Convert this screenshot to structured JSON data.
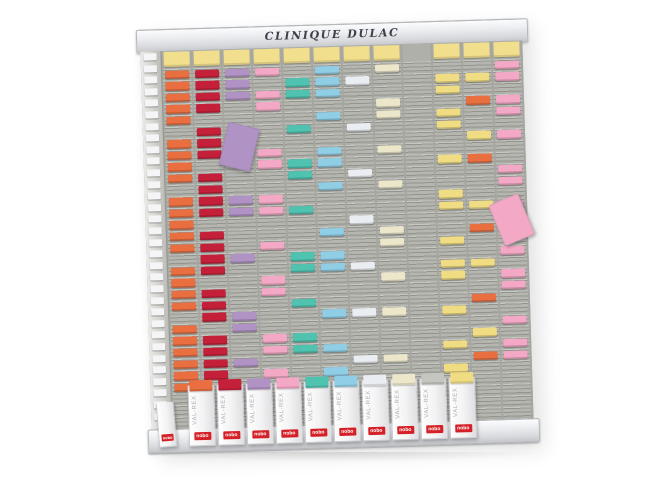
{
  "board": {
    "title": "CLINIQUE DULAC",
    "rows": 31,
    "row_height": 11.6,
    "header_color": "#f2df8e",
    "palette": {
      "orange": "#e96f41",
      "red": "#c52039",
      "purple": "#b192c5",
      "pink": "#f3a8c6",
      "teal": "#4fc2b0",
      "blue": "#90cee6",
      "white": "#eaedf1",
      "cream": "#ece7cb",
      "yellow": "#f0dd83",
      "gray": "#c6c6c1"
    },
    "mask_key": {
      "o": "orange",
      "r": "red",
      "p": "purple",
      "k": "pink",
      "t": "teal",
      "b": "blue",
      "w": "white",
      "c": "cream",
      "y": "yellow"
    },
    "columns": [
      {
        "id": 1,
        "header": true,
        "mask": "ooooo.oooo.ooooo.oooo.oooooo..."
      },
      {
        "id": 2,
        "header": true,
        "mask": "rrrr.rrr.rrrr.rrrr.rrr.rrrr...."
      },
      {
        "id": 3,
        "header": true,
        "mask": "ppp....p...pp...p....pp..p....."
      },
      {
        "id": 4,
        "header": true,
        "mask": "k.kk...kk..kk..k..kk...kk.k...."
      },
      {
        "id": 5,
        "header": true,
        "mask": ".tt..t..tt..t...tt..t..tt......"
      },
      {
        "id": 6,
        "header": true,
        "mask": "bbb.b..bb.b...b.bb...b..b.b...."
      },
      {
        "id": 7,
        "header": true,
        "mask": ".w...w...w...w...w...w...w....."
      },
      {
        "id": 8,
        "header": true,
        "mask": "c..cc..c..c...cc..c..c...c....."
      },
      {
        "id": 9,
        "header": false,
        "mask": "..............................."
      },
      {
        "id": 10,
        "header": true,
        "mask": ".yy.yy..y..yy..y.yy..y..y.y...."
      },
      {
        "id": 11,
        "header": true,
        "mask": ".y.o..y.o...y.o..y..o..y.o....."
      },
      {
        "id": 12,
        "header": true,
        "mask": "kk.kk.k..kk.k...k.kk..k.kk....."
      }
    ],
    "loose_cards": [
      {
        "color": "purple",
        "col": 3,
        "row": 5
      },
      {
        "color": "pink",
        "col": 12,
        "row": 12
      }
    ]
  },
  "boxes": {
    "label": "VAL-REX",
    "brand": "nobo",
    "items": [
      {
        "shape": "flat",
        "color": "white"
      },
      {
        "shape": "standing",
        "color": "orange"
      },
      {
        "shape": "standing",
        "color": "red"
      },
      {
        "shape": "standing",
        "color": "purple"
      },
      {
        "shape": "standing",
        "color": "pink"
      },
      {
        "shape": "standing",
        "color": "teal"
      },
      {
        "shape": "standing",
        "color": "blue"
      },
      {
        "shape": "standing",
        "color": "white"
      },
      {
        "shape": "standing",
        "color": "cream"
      },
      {
        "shape": "standing",
        "color": "gray"
      },
      {
        "shape": "standing",
        "color": "yellow"
      }
    ]
  }
}
